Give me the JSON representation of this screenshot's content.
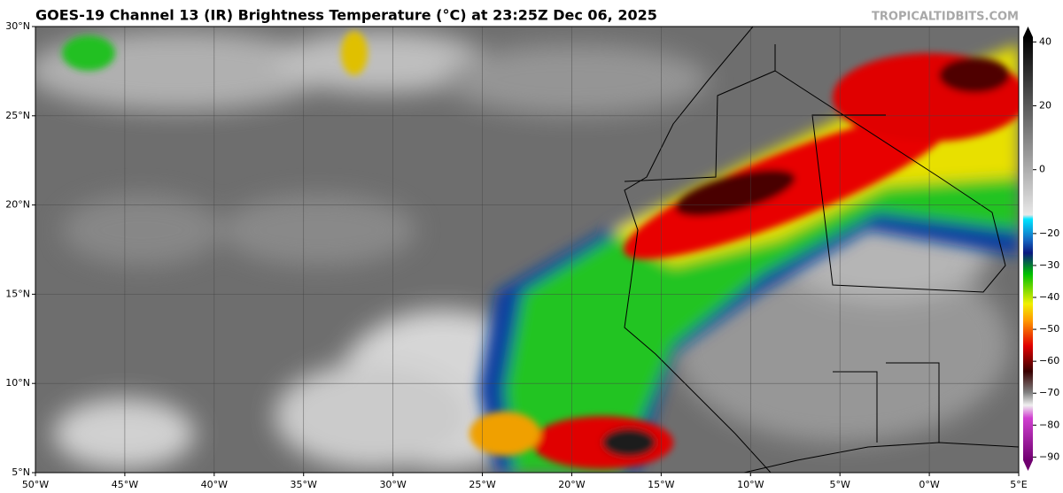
{
  "map": {
    "title": "GOES-19 Channel 13 (IR) Brightness Temperature (°C) at 23:25Z Dec 06, 2025",
    "credit": "TROPICALTIDBITS.COM",
    "xlim": [
      -50,
      5
    ],
    "ylim": [
      5,
      30
    ],
    "xticks": [
      {
        "value": -50,
        "label": "50°W"
      },
      {
        "value": -45,
        "label": "45°W"
      },
      {
        "value": -40,
        "label": "40°W"
      },
      {
        "value": -35,
        "label": "35°W"
      },
      {
        "value": -30,
        "label": "30°W"
      },
      {
        "value": -25,
        "label": "25°W"
      },
      {
        "value": -20,
        "label": "20°W"
      },
      {
        "value": -15,
        "label": "15°W"
      },
      {
        "value": -10,
        "label": "10°W"
      },
      {
        "value": -5,
        "label": "5°W"
      },
      {
        "value": 0,
        "label": "0°W"
      },
      {
        "value": 5,
        "label": "5°E"
      }
    ],
    "yticks": [
      {
        "value": 30,
        "label": "30°N"
      },
      {
        "value": 25,
        "label": "25°N"
      },
      {
        "value": 20,
        "label": "20°N"
      },
      {
        "value": 15,
        "label": "15°N"
      },
      {
        "value": 10,
        "label": "10°N"
      },
      {
        "value": 5,
        "label": "5°N"
      }
    ],
    "grid": true,
    "colorbar": {
      "lim": [
        -91,
        41.5
      ],
      "ticks": [
        40,
        20,
        0,
        {
          "value": -20,
          "label": "−20"
        },
        {
          "value": -30,
          "label": "−30"
        },
        {
          "value": -40,
          "label": "−40"
        },
        {
          "value": -50,
          "label": "−50"
        },
        {
          "value": -60,
          "label": "−60"
        },
        {
          "value": -70,
          "label": "−70"
        },
        {
          "value": -80,
          "label": "−80"
        },
        {
          "value": -90,
          "label": "−90"
        }
      ]
    }
  }
}
